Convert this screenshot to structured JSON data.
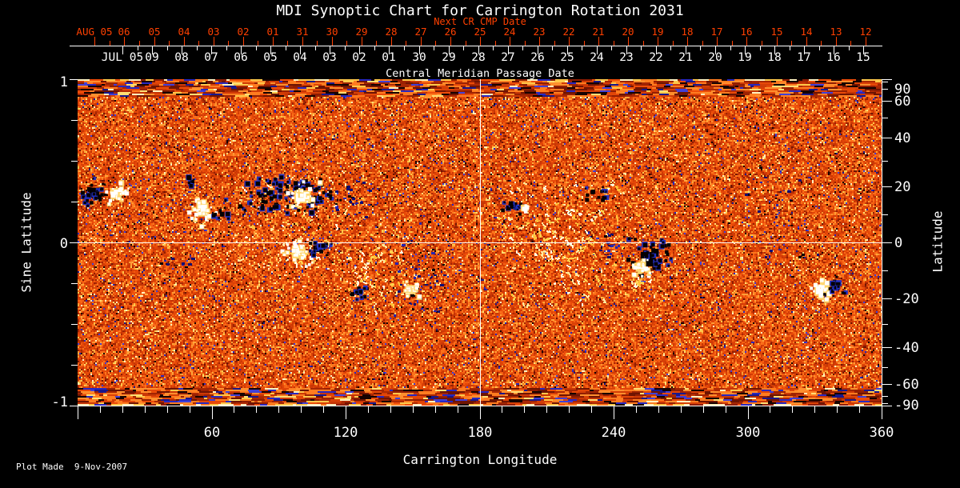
{
  "title": "MDI Synoptic Chart for Carrington Rotation 2031",
  "annotations": {
    "next_cr_caption": "Next CR CMP Date",
    "cmp_caption": "Central Meridian Passage Date",
    "plot_made": "Plot Made  9-Nov-2007"
  },
  "colors": {
    "background": "#000000",
    "text": "#ffffff",
    "date_accent": "#ff4000",
    "crosshair": "#ffffff",
    "positive_polarity": "#ffffff",
    "negative_polarity": "#050103",
    "negative_fringe": "#2230c0",
    "positive_fringe": "#ffd76e"
  },
  "axes": {
    "top_red": {
      "labels": [
        "AUG 05",
        "06",
        "05",
        "04",
        "03",
        "02",
        "01",
        "31",
        "30",
        "29",
        "28",
        "27",
        "26",
        "25",
        "24",
        "23",
        "22",
        "21",
        "20",
        "19",
        "18",
        "17",
        "16",
        "15",
        "14",
        "13",
        "12"
      ]
    },
    "top_white": {
      "labels": [
        "JUL 05",
        "09",
        "08",
        "07",
        "06",
        "05",
        "04",
        "03",
        "02",
        "01",
        "30",
        "29",
        "28",
        "27",
        "26",
        "25",
        "24",
        "23",
        "22",
        "21",
        "20",
        "19",
        "18",
        "17",
        "16",
        "15"
      ]
    },
    "bottom": {
      "title": "Carrington Longitude",
      "major_values": [
        0,
        60,
        120,
        180,
        240,
        300,
        360
      ],
      "major_labels": [
        "",
        "60",
        "120",
        "180",
        "240",
        "300",
        "360"
      ],
      "minor_step": 10,
      "range": [
        0,
        360
      ]
    },
    "left": {
      "title": "Sine Latitude",
      "major_values": [
        1,
        0,
        -1
      ],
      "major_labels": [
        "1",
        "0",
        "-1"
      ],
      "minor_values": [
        0.75,
        0.5,
        0.25,
        -0.25,
        -0.5,
        -0.75
      ],
      "range": [
        -1,
        1
      ]
    },
    "right": {
      "title": "Latitude",
      "major_values": [
        90,
        60,
        40,
        20,
        0,
        -20,
        -40,
        -60,
        -90
      ],
      "major_labels": [
        "90",
        "60",
        "40",
        "20",
        "0",
        "-20",
        "-40",
        "-60",
        "-90"
      ],
      "minor_values": [
        80,
        70,
        50,
        30,
        10,
        -10,
        -30,
        -50,
        -70,
        -80
      ]
    }
  },
  "chart_data": {
    "type": "heatmap",
    "description": "SOHO/MDI photospheric magnetic field synoptic map for Carrington rotation 2031. Quiet sun is noisy orange-red; white blobs are positive magnetic polarity, black/blue blobs negative polarity; polar rows are horizontally streaked noise.",
    "x_axis": {
      "label": "Carrington Longitude",
      "range": [
        0,
        360
      ]
    },
    "y_axis": {
      "label": "Sine Latitude",
      "range": [
        -1,
        1
      ]
    },
    "crosshair": {
      "longitude": 180,
      "sine_latitude": 0
    },
    "quiet_palette": {
      "black": "#160301",
      "blues": [
        "#18188c",
        "#2828c0",
        "#4040d8"
      ],
      "dark_reds": [
        "#6e1402",
        "#8c1c02",
        "#b02a04"
      ],
      "mid_oranges": [
        "#c23305",
        "#ee4d09"
      ],
      "bright_oranges": [
        "#f1560e",
        "#ff7c20"
      ],
      "light_oranges": [
        "#ff8f2e",
        "#ffae3f"
      ],
      "yellows": [
        "#ffc84a",
        "#ffde74"
      ],
      "cream": "#fff2c0"
    },
    "active_regions": [
      {
        "kind": "black",
        "lon": 7.5,
        "sin_lat": 0.304,
        "rlon": 6.1,
        "rsl": 0.083,
        "n": 28,
        "core": true
      },
      {
        "kind": "white",
        "lon": 17.2,
        "sin_lat": 0.299,
        "rlon": 4.7,
        "rsl": 0.064,
        "n": 18,
        "core": true
      },
      {
        "kind": "white",
        "lon": 55.9,
        "sin_lat": 0.201,
        "rlon": 5.4,
        "rsl": 0.088,
        "n": 24,
        "core": true
      },
      {
        "kind": "black",
        "lon": 64.8,
        "sin_lat": 0.196,
        "rlon": 3.6,
        "rsl": 0.059,
        "n": 10,
        "core": false
      },
      {
        "kind": "black",
        "lon": 51.2,
        "sin_lat": 0.358,
        "rlon": 2.9,
        "rsl": 0.039,
        "n": 8,
        "core": true
      },
      {
        "kind": "black",
        "lon": 94.2,
        "sin_lat": 0.284,
        "rlon": 21.5,
        "rsl": 0.098,
        "n": 110,
        "core": false
      },
      {
        "kind": "white",
        "lon": 100.7,
        "sin_lat": 0.279,
        "rlon": 7.9,
        "rsl": 0.078,
        "n": 26,
        "core": true
      },
      {
        "kind": "bspeckle",
        "lon": 123.6,
        "sin_lat": 0.279,
        "rlon": 11.0,
        "rsl": 0.12,
        "n": 30
      },
      {
        "kind": "white",
        "lon": 98.9,
        "sin_lat": -0.059,
        "rlon": 6.1,
        "rsl": 0.083,
        "n": 34,
        "core": true
      },
      {
        "kind": "black",
        "lon": 107.5,
        "sin_lat": -0.039,
        "rlon": 5.4,
        "rsl": 0.054,
        "n": 18,
        "core": true
      },
      {
        "kind": "ynet",
        "lon": 131.5,
        "sin_lat": -0.211,
        "rlon": 12.9,
        "rsl": 0.225,
        "n": 55
      },
      {
        "kind": "bspeckle",
        "lon": 152.6,
        "sin_lat": -0.132,
        "rlon": 12.5,
        "rsl": 0.304,
        "n": 60
      },
      {
        "kind": "white",
        "lon": 149.0,
        "sin_lat": -0.289,
        "rlon": 4.3,
        "rsl": 0.049,
        "n": 14,
        "core": true
      },
      {
        "kind": "black",
        "lon": 126.1,
        "sin_lat": -0.309,
        "rlon": 3.2,
        "rsl": 0.039,
        "n": 10,
        "core": true
      },
      {
        "kind": "black",
        "lon": 194.9,
        "sin_lat": 0.225,
        "rlon": 5.0,
        "rsl": 0.054,
        "n": 16,
        "core": true
      },
      {
        "kind": "white",
        "lon": 200.3,
        "sin_lat": 0.211,
        "rlon": 2.5,
        "rsl": 0.029,
        "n": 7,
        "core": true
      },
      {
        "kind": "ynet",
        "lon": 219.6,
        "sin_lat": 0.039,
        "rlon": 28.7,
        "rsl": 0.417,
        "n": 150
      },
      {
        "kind": "ynet",
        "lon": 101.4,
        "sin_lat": 0.069,
        "rlon": 28.7,
        "rsl": 0.304,
        "n": 60
      },
      {
        "kind": "black",
        "lon": 231.1,
        "sin_lat": 0.294,
        "rlon": 5.4,
        "rsl": 0.049,
        "n": 14,
        "core": false
      },
      {
        "kind": "bspeckle",
        "lon": 238.3,
        "sin_lat": -0.01,
        "rlon": 5.4,
        "rsl": 0.074,
        "n": 18
      },
      {
        "kind": "black",
        "lon": 255.5,
        "sin_lat": -0.103,
        "rlon": 9.0,
        "rsl": 0.118,
        "n": 42,
        "core": true
      },
      {
        "kind": "white",
        "lon": 252.2,
        "sin_lat": -0.152,
        "rlon": 4.3,
        "rsl": 0.049,
        "n": 22,
        "core": true
      },
      {
        "kind": "ynet",
        "lon": 248.3,
        "sin_lat": -0.235,
        "rlon": 7.2,
        "rsl": 0.078,
        "n": 16
      },
      {
        "kind": "bspeckle",
        "lon": 309.2,
        "sin_lat": 0.265,
        "rlon": 25.1,
        "rsl": 0.353,
        "n": 36
      },
      {
        "kind": "white",
        "lon": 332.2,
        "sin_lat": -0.294,
        "rlon": 4.3,
        "rsl": 0.064,
        "n": 16,
        "core": true
      },
      {
        "kind": "black",
        "lon": 339.4,
        "sin_lat": -0.27,
        "rlon": 5.0,
        "rsl": 0.054,
        "n": 15,
        "core": true
      },
      {
        "kind": "bspeckle",
        "lon": 43.0,
        "sin_lat": -0.103,
        "rlon": 7.9,
        "rsl": 0.059,
        "n": 12
      }
    ]
  }
}
